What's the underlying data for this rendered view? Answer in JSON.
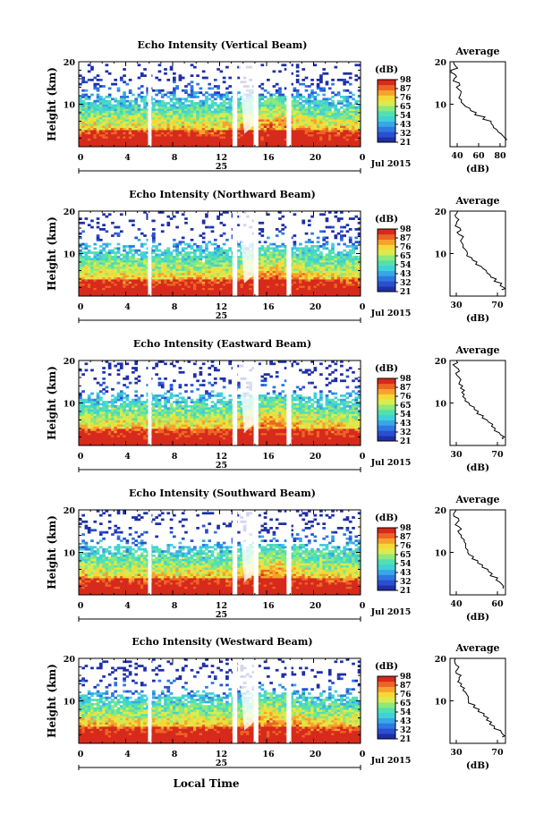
{
  "figure": {
    "xlabel_bottom": "Local Time",
    "date_label": "Jul 2015",
    "day_label": "25",
    "avg_title": "Average",
    "colorbar_unit": "(dB)",
    "avg_xlabel": "(dB)",
    "ylabel": "Height (km)"
  },
  "chart_data": [
    {
      "type": "heatmap",
      "title": "Echo Intensity (Vertical Beam)",
      "xlabel": "",
      "ylabel": "Height (km)",
      "xlim": [
        0,
        24
      ],
      "ylim": [
        0,
        20
      ],
      "xticks": [
        "0",
        "4",
        "8",
        "12",
        "16",
        "20",
        "0"
      ],
      "yticks": [
        "10",
        "20"
      ],
      "colorbar": {
        "unit": "(dB)",
        "ticks": [
          "98",
          "87",
          "76",
          "65",
          "54",
          "43",
          "32",
          "21"
        ]
      },
      "gaps_hours": [
        [
          5.9,
          6.2
        ],
        [
          13.1,
          13.5
        ],
        [
          14.9,
          15.3
        ],
        [
          17.7,
          18.1
        ]
      ],
      "profile": {
        "title": "Average",
        "xlabel": "(dB)",
        "xticks": [
          "40",
          "60",
          "80"
        ],
        "xlim": [
          33,
          80
        ],
        "heights": [
          20,
          19,
          18,
          17,
          16,
          15,
          14,
          13,
          12,
          11,
          10,
          9,
          8,
          7,
          6,
          5,
          4,
          3,
          2,
          1.5
        ],
        "values": [
          35,
          38,
          34,
          38,
          36,
          40,
          39,
          42,
          41,
          43,
          45,
          50,
          55,
          62,
          67,
          70,
          73,
          77,
          80,
          79
        ]
      }
    },
    {
      "type": "heatmap",
      "title": "Echo Intensity (Northward Beam)",
      "xlabel": "",
      "ylabel": "Height (km)",
      "xlim": [
        0,
        24
      ],
      "ylim": [
        0,
        20
      ],
      "xticks": [
        "0",
        "4",
        "8",
        "12",
        "16",
        "20",
        "0"
      ],
      "yticks": [
        "10",
        "20"
      ],
      "colorbar": {
        "unit": "(dB)",
        "ticks": [
          "98",
          "87",
          "76",
          "65",
          "54",
          "43",
          "32",
          "21"
        ]
      },
      "gaps_hours": [
        [
          5.9,
          6.2
        ],
        [
          13.1,
          13.5
        ],
        [
          14.9,
          15.3
        ],
        [
          17.7,
          18.1
        ]
      ],
      "profile": {
        "title": "Average",
        "xlabel": "(dB)",
        "xticks": [
          "30",
          "70"
        ],
        "xlim": [
          25,
          80
        ],
        "heights": [
          20,
          19,
          18,
          17,
          16,
          15,
          14,
          13,
          12,
          11,
          10,
          9,
          8,
          7,
          6,
          5,
          4,
          3,
          2,
          1.5
        ],
        "values": [
          32,
          30,
          33,
          31,
          35,
          33,
          37,
          36,
          38,
          40,
          42,
          47,
          52,
          57,
          61,
          65,
          70,
          75,
          78,
          77
        ]
      }
    },
    {
      "type": "heatmap",
      "title": "Echo Intensity (Eastward Beam)",
      "xlabel": "",
      "ylabel": "Height (km)",
      "xlim": [
        0,
        24
      ],
      "ylim": [
        0,
        20
      ],
      "xticks": [
        "0",
        "4",
        "8",
        "12",
        "16",
        "20",
        "0"
      ],
      "yticks": [
        "10",
        "20"
      ],
      "colorbar": {
        "unit": "(dB)",
        "ticks": [
          "98",
          "87",
          "76",
          "65",
          "54",
          "43",
          "32",
          "21"
        ]
      },
      "gaps_hours": [
        [
          5.9,
          6.2
        ],
        [
          13.1,
          13.5
        ],
        [
          14.9,
          15.3
        ],
        [
          17.7,
          18.1
        ]
      ],
      "profile": {
        "title": "Average",
        "xlabel": "(dB)",
        "xticks": [
          "30",
          "70"
        ],
        "xlim": [
          25,
          80
        ],
        "heights": [
          20,
          19,
          18,
          17,
          16,
          15,
          14,
          13,
          12,
          11,
          10,
          9,
          8,
          7,
          6,
          5,
          4,
          3,
          2,
          1.5
        ],
        "values": [
          31,
          29,
          33,
          32,
          35,
          34,
          37,
          38,
          39,
          41,
          43,
          48,
          52,
          57,
          62,
          66,
          70,
          75,
          78,
          77
        ]
      }
    },
    {
      "type": "heatmap",
      "title": "Echo Intensity (Southward Beam)",
      "xlabel": "",
      "ylabel": "Height (km)",
      "xlim": [
        0,
        24
      ],
      "ylim": [
        0,
        20
      ],
      "xticks": [
        "0",
        "4",
        "8",
        "12",
        "16",
        "20",
        "0"
      ],
      "yticks": [
        "10",
        "20"
      ],
      "colorbar": {
        "unit": "(dB)",
        "ticks": [
          "98",
          "87",
          "76",
          "65",
          "54",
          "43",
          "32",
          "21"
        ]
      },
      "gaps_hours": [
        [
          5.9,
          6.2
        ],
        [
          13.1,
          13.5
        ],
        [
          14.9,
          15.3
        ],
        [
          17.7,
          18.1
        ]
      ],
      "profile": {
        "title": "Average",
        "xlabel": "(dB)",
        "xticks": [
          "40",
          "60"
        ],
        "xlim": [
          25,
          80
        ],
        "heights": [
          20,
          19,
          18,
          17,
          16,
          15,
          14,
          13,
          12,
          11,
          10,
          9,
          8,
          7,
          6,
          5,
          4,
          3,
          2,
          1.5
        ],
        "values": [
          30,
          28,
          33,
          31,
          35,
          33,
          37,
          38,
          40,
          41,
          43,
          48,
          53,
          58,
          62,
          66,
          71,
          75,
          78,
          77
        ]
      }
    },
    {
      "type": "heatmap",
      "title": "Echo Intensity (Westward Beam)",
      "xlabel": "Local Time",
      "ylabel": "Height (km)",
      "xlim": [
        0,
        24
      ],
      "ylim": [
        0,
        20
      ],
      "xticks": [
        "0",
        "4",
        "8",
        "12",
        "16",
        "20",
        "0"
      ],
      "yticks": [
        "10",
        "20"
      ],
      "colorbar": {
        "unit": "(dB)",
        "ticks": [
          "98",
          "87",
          "76",
          "65",
          "54",
          "43",
          "32",
          "21"
        ]
      },
      "gaps_hours": [
        [
          5.9,
          6.2
        ],
        [
          13.1,
          13.5
        ],
        [
          14.9,
          15.3
        ],
        [
          17.7,
          18.1
        ]
      ],
      "profile": {
        "title": "Average",
        "xlabel": "(dB)",
        "xticks": [
          "30",
          "70"
        ],
        "xlim": [
          25,
          80
        ],
        "heights": [
          20,
          19,
          18,
          17,
          16,
          15,
          14,
          13,
          12,
          11,
          10,
          9,
          8,
          7,
          6,
          5,
          4,
          3,
          2,
          1.5
        ],
        "values": [
          31,
          29,
          33,
          31,
          35,
          33,
          37,
          38,
          40,
          42,
          44,
          49,
          53,
          58,
          62,
          66,
          70,
          75,
          78,
          77
        ]
      }
    }
  ]
}
